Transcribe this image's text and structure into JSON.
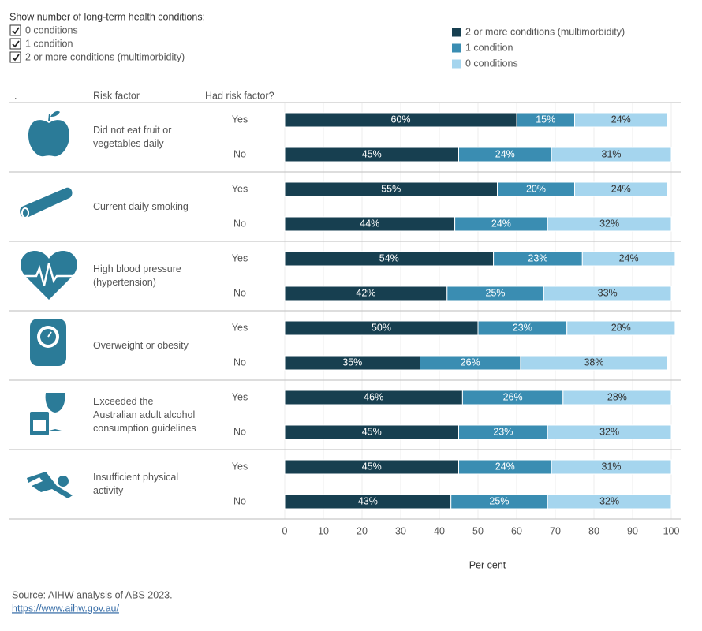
{
  "chart_data": {
    "type": "bar",
    "orientation": "horizontal",
    "stacked": true,
    "filter_title": "Show number of long-term health conditions:",
    "column_headers": [
      ".",
      "Risk factor",
      "Had risk factor?"
    ],
    "groups": [
      "Did not eat fruit or vegetables daily",
      "Current daily smoking",
      "High blood pressure (hypertension)",
      "Overweight or obesity",
      "Exceeded the Australian adult alcohol consumption guidelines",
      "Insufficient physical activity"
    ],
    "categories": [
      "Yes",
      "No",
      "Yes",
      "No",
      "Yes",
      "No",
      "Yes",
      "No",
      "Yes",
      "No",
      "Yes",
      "No"
    ],
    "series": [
      {
        "name": "2 or more conditions (multimorbidity)",
        "color": "#173f50",
        "values": [
          60,
          45,
          55,
          44,
          54,
          42,
          50,
          35,
          46,
          45,
          45,
          43
        ],
        "value_labels": [
          "60%",
          "45%",
          "55%",
          "44%",
          "54%",
          "42%",
          "50%",
          "35%",
          "46%",
          "45%",
          "45%",
          "43%"
        ]
      },
      {
        "name": "1 condition",
        "color": "#3a8db2",
        "values": [
          15,
          24,
          20,
          24,
          23,
          25,
          23,
          26,
          26,
          23,
          24,
          25
        ],
        "value_labels": [
          "15%",
          "24%",
          "20%",
          "24%",
          "23%",
          "25%",
          "23%",
          "26%",
          "26%",
          "23%",
          "24%",
          "25%"
        ]
      },
      {
        "name": "0 conditions",
        "color": "#a5d5ee",
        "values": [
          24,
          31,
          24,
          32,
          24,
          33,
          28,
          38,
          28,
          32,
          31,
          32
        ],
        "value_labels": [
          "24%",
          "31%",
          "24%",
          "32%",
          "24%",
          "33%",
          "28%",
          "38%",
          "28%",
          "32%",
          "31%",
          "32%"
        ]
      }
    ],
    "xlim": [
      0,
      100
    ],
    "xticks": [
      0,
      10,
      20,
      30,
      40,
      50,
      60,
      70,
      80,
      90,
      100
    ],
    "xlabel": "Per cent",
    "grid": true,
    "source": "Source: AIHW analysis of ABS 2023.",
    "link": "https://www.aihw.gov.au/"
  }
}
